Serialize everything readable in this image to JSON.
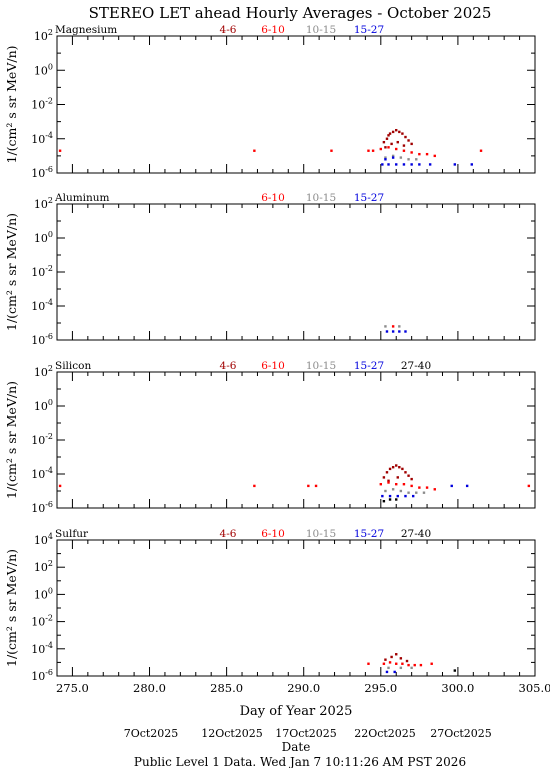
{
  "title": "STEREO LET ahead Hourly Averages - October 2025",
  "xlabel": "Day of Year 2025",
  "date_label": "Date",
  "footer": "Public Level 1 Data. Wed Jan  7 10:11:26 AM PST 2026",
  "ylabel": "1/(cm² s sr MeV/n)",
  "date_ticks": [
    "7Oct2025",
    "12Oct2025",
    "17Oct2025",
    "22Oct2025",
    "27Oct2025"
  ],
  "colors": {
    "4-6": "#a00000",
    "6-10": "#ff0000",
    "10-15": "#8c8c8c",
    "15-27": "#0000dd",
    "27-40": "#000000"
  },
  "chart_data": [
    {
      "type": "scatter",
      "title": "Magnesium",
      "xlim": [
        274,
        305
      ],
      "ylim": [
        -6,
        2
      ],
      "yscale": "log",
      "x_ticks": [
        275.0,
        280.0,
        285.0,
        290.0,
        295.0,
        300.0,
        305.0
      ],
      "y_ticks": [
        -6,
        -4,
        -2,
        0,
        2
      ],
      "legend": [
        "4-6",
        "6-10",
        "10-15",
        "15-27"
      ],
      "series": [
        {
          "name": "4-6",
          "points": [
            [
              295.2,
              -4.2
            ],
            [
              295.4,
              -4.0
            ],
            [
              295.5,
              -3.8
            ],
            [
              295.6,
              -3.7
            ],
            [
              295.8,
              -3.6
            ],
            [
              296.0,
              -3.5
            ],
            [
              296.2,
              -3.6
            ],
            [
              296.4,
              -3.7
            ],
            [
              296.6,
              -3.9
            ],
            [
              296.8,
              -4.1
            ],
            [
              297.0,
              -4.3
            ],
            [
              295.3,
              -4.5
            ],
            [
              295.7,
              -4.3
            ],
            [
              296.1,
              -4.2
            ],
            [
              296.5,
              -4.4
            ]
          ]
        },
        {
          "name": "6-10",
          "points": [
            [
              274.2,
              -4.7
            ],
            [
              286.8,
              -4.7
            ],
            [
              291.8,
              -4.7
            ],
            [
              294.2,
              -4.7
            ],
            [
              294.5,
              -4.7
            ],
            [
              295.0,
              -4.6
            ],
            [
              295.5,
              -4.5
            ],
            [
              296.0,
              -4.6
            ],
            [
              296.5,
              -4.7
            ],
            [
              297.0,
              -4.8
            ],
            [
              297.5,
              -4.9
            ],
            [
              298.0,
              -4.9
            ],
            [
              298.5,
              -5.0
            ],
            [
              301.5,
              -4.7
            ]
          ]
        },
        {
          "name": "10-15",
          "points": [
            [
              295.3,
              -5.1
            ],
            [
              295.8,
              -5.0
            ],
            [
              296.3,
              -5.1
            ],
            [
              296.8,
              -5.2
            ],
            [
              297.3,
              -5.2
            ]
          ]
        },
        {
          "name": "15-27",
          "points": [
            [
              295.1,
              -5.5
            ],
            [
              295.5,
              -5.5
            ],
            [
              296.0,
              -5.5
            ],
            [
              296.5,
              -5.5
            ],
            [
              297.0,
              -5.5
            ],
            [
              297.5,
              -5.5
            ],
            [
              298.2,
              -5.5
            ],
            [
              299.8,
              -5.5
            ],
            [
              300.9,
              -5.5
            ],
            [
              295.3,
              -5.2
            ],
            [
              295.8,
              -5.1
            ]
          ]
        }
      ]
    },
    {
      "type": "scatter",
      "title": "Aluminum",
      "xlim": [
        274,
        305
      ],
      "ylim": [
        -6,
        2
      ],
      "yscale": "log",
      "x_ticks": [
        275.0,
        280.0,
        285.0,
        290.0,
        295.0,
        300.0,
        305.0
      ],
      "y_ticks": [
        -6,
        -4,
        -2,
        0,
        2
      ],
      "legend": [
        "6-10",
        "10-15",
        "15-27"
      ],
      "series": [
        {
          "name": "6-10",
          "points": [
            [
              295.8,
              -5.2
            ]
          ]
        },
        {
          "name": "10-15",
          "points": [
            [
              295.3,
              -5.2
            ],
            [
              296.2,
              -5.2
            ]
          ]
        },
        {
          "name": "15-27",
          "points": [
            [
              295.4,
              -5.5
            ],
            [
              295.8,
              -5.5
            ],
            [
              296.2,
              -5.5
            ],
            [
              296.6,
              -5.5
            ]
          ]
        }
      ]
    },
    {
      "type": "scatter",
      "title": "Silicon",
      "xlim": [
        274,
        305
      ],
      "ylim": [
        -6,
        2
      ],
      "yscale": "log",
      "x_ticks": [
        275.0,
        280.0,
        285.0,
        290.0,
        295.0,
        300.0,
        305.0
      ],
      "y_ticks": [
        -6,
        -4,
        -2,
        0,
        2
      ],
      "legend": [
        "4-6",
        "6-10",
        "10-15",
        "15-27",
        "27-40"
      ],
      "series": [
        {
          "name": "4-6",
          "points": [
            [
              295.2,
              -4.2
            ],
            [
              295.4,
              -3.9
            ],
            [
              295.6,
              -3.7
            ],
            [
              295.8,
              -3.6
            ],
            [
              296.0,
              -3.5
            ],
            [
              296.2,
              -3.6
            ],
            [
              296.4,
              -3.7
            ],
            [
              296.6,
              -3.9
            ],
            [
              296.8,
              -4.1
            ],
            [
              297.0,
              -4.3
            ],
            [
              295.5,
              -4.4
            ],
            [
              296.1,
              -4.2
            ]
          ]
        },
        {
          "name": "6-10",
          "points": [
            [
              274.2,
              -4.7
            ],
            [
              286.8,
              -4.7
            ],
            [
              290.3,
              -4.7
            ],
            [
              290.8,
              -4.7
            ],
            [
              295.0,
              -4.6
            ],
            [
              295.5,
              -4.5
            ],
            [
              296.0,
              -4.6
            ],
            [
              296.5,
              -4.6
            ],
            [
              297.0,
              -4.7
            ],
            [
              297.5,
              -4.8
            ],
            [
              298.0,
              -4.8
            ],
            [
              298.5,
              -4.9
            ],
            [
              304.6,
              -4.7
            ]
          ]
        },
        {
          "name": "10-15",
          "points": [
            [
              295.3,
              -5.0
            ],
            [
              295.8,
              -4.9
            ],
            [
              296.3,
              -5.0
            ],
            [
              296.8,
              -5.1
            ],
            [
              297.3,
              -5.1
            ],
            [
              297.8,
              -5.1
            ]
          ]
        },
        {
          "name": "15-27",
          "points": [
            [
              295.1,
              -5.3
            ],
            [
              295.6,
              -5.3
            ],
            [
              296.1,
              -5.3
            ],
            [
              296.6,
              -5.3
            ],
            [
              297.1,
              -5.3
            ],
            [
              299.6,
              -4.7
            ],
            [
              300.6,
              -4.7
            ]
          ]
        },
        {
          "name": "27-40",
          "points": [
            [
              295.2,
              -5.6
            ],
            [
              295.6,
              -5.5
            ],
            [
              296.0,
              -5.5
            ]
          ]
        }
      ]
    },
    {
      "type": "scatter",
      "title": "Sulfur",
      "xlim": [
        274,
        305
      ],
      "ylim": [
        -6,
        4
      ],
      "yscale": "log",
      "x_ticks": [
        275.0,
        280.0,
        285.0,
        290.0,
        295.0,
        300.0,
        305.0
      ],
      "y_ticks": [
        -6,
        -4,
        -2,
        0,
        2,
        4
      ],
      "legend": [
        "4-6",
        "6-10",
        "10-15",
        "15-27",
        "27-40"
      ],
      "series": [
        {
          "name": "4-6",
          "points": [
            [
              295.3,
              -4.8
            ],
            [
              295.7,
              -4.6
            ],
            [
              296.0,
              -4.4
            ],
            [
              296.3,
              -4.7
            ],
            [
              296.7,
              -4.9
            ]
          ]
        },
        {
          "name": "6-10",
          "points": [
            [
              294.2,
              -5.1
            ],
            [
              295.2,
              -5.1
            ],
            [
              295.6,
              -5.0
            ],
            [
              296.0,
              -5.1
            ],
            [
              296.4,
              -5.1
            ],
            [
              296.8,
              -5.2
            ],
            [
              297.2,
              -5.2
            ],
            [
              297.6,
              -5.2
            ],
            [
              298.3,
              -5.1
            ]
          ]
        },
        {
          "name": "10-15",
          "points": [
            [
              295.5,
              -5.4
            ],
            [
              296.3,
              -5.4
            ],
            [
              297.0,
              -5.4
            ]
          ]
        },
        {
          "name": "15-27",
          "points": [
            [
              295.4,
              -5.7
            ],
            [
              295.9,
              -5.7
            ]
          ]
        },
        {
          "name": "27-40",
          "points": [
            [
              299.8,
              -5.6
            ]
          ]
        }
      ]
    }
  ]
}
